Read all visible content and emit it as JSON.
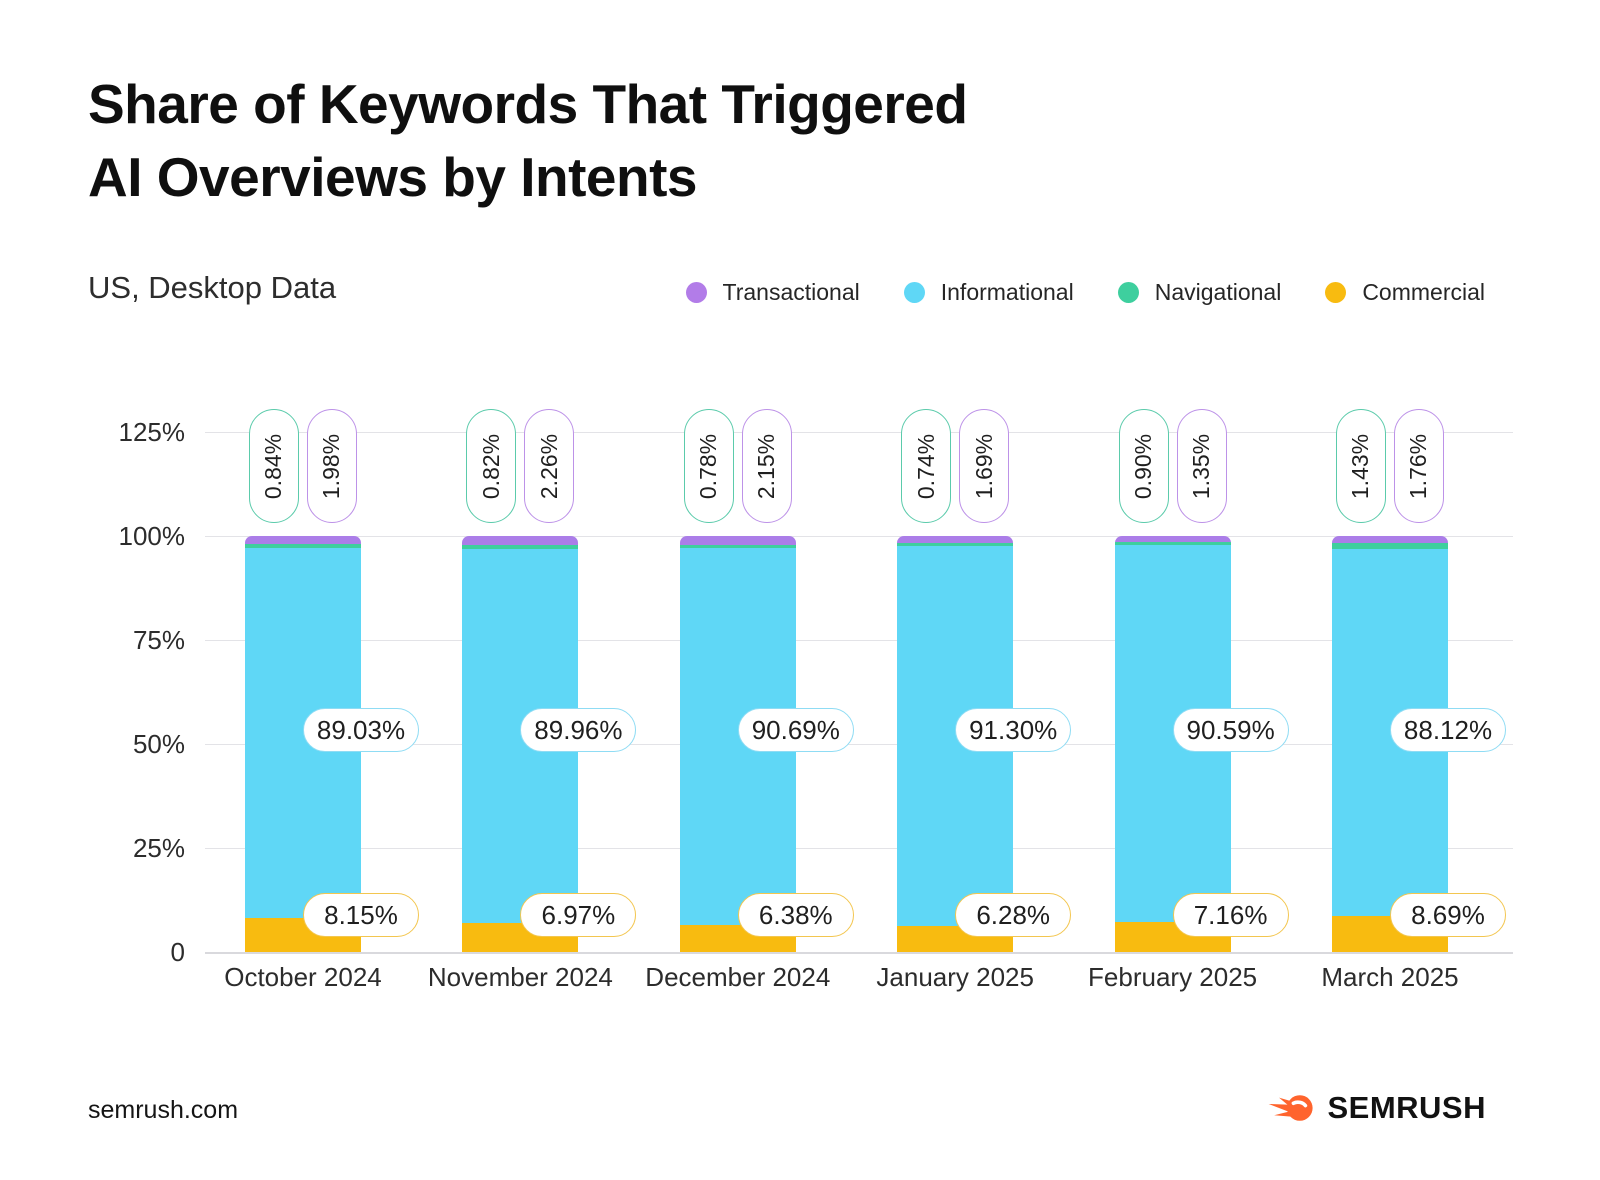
{
  "page": {
    "title_line1": "Share of Keywords That Triggered",
    "title_line2": "AI Overviews by Intents",
    "subtitle": "US, Desktop Data",
    "footer_url": "semrush.com",
    "brand_name": "SEMRUSH",
    "brand_color": "#ff642d"
  },
  "legend": [
    {
      "label": "Transactional",
      "color": "#b27ce8"
    },
    {
      "label": "Informational",
      "color": "#5fd7f6"
    },
    {
      "label": "Navigational",
      "color": "#3ecf9e"
    },
    {
      "label": "Commercial",
      "color": "#f8bb10"
    }
  ],
  "chart_data": {
    "type": "bar",
    "stacked": true,
    "title": "Share of Keywords That Triggered AI Overviews by Intents",
    "subtitle": "US, Desktop Data",
    "grid": true,
    "legend_position": "top-right",
    "categories": [
      "October 2024",
      "November 2024",
      "December 2024",
      "January 2025",
      "February 2025",
      "March 2025"
    ],
    "series": [
      {
        "name": "Transactional",
        "color": "#ab7de8",
        "values": [
          1.98,
          2.26,
          2.15,
          1.69,
          1.35,
          1.76
        ]
      },
      {
        "name": "Navigational",
        "color": "#3ecf9e",
        "values": [
          0.84,
          0.82,
          0.78,
          0.74,
          0.9,
          1.43
        ]
      },
      {
        "name": "Informational",
        "color": "#5fd7f6",
        "values": [
          89.03,
          89.96,
          90.69,
          91.3,
          90.59,
          88.12
        ]
      },
      {
        "name": "Commercial",
        "color": "#f8bb10",
        "values": [
          8.15,
          6.97,
          6.38,
          6.28,
          7.16,
          8.69
        ]
      }
    ],
    "stack_order_top_to_bottom": [
      "Transactional",
      "Navigational",
      "Informational",
      "Commercial"
    ],
    "pill_labels": {
      "navigational": [
        "0.84%",
        "0.82%",
        "0.78%",
        "0.74%",
        "0.90%",
        "1.43%"
      ],
      "transactional": [
        "1.98%",
        "2.26%",
        "2.15%",
        "1.69%",
        "1.35%",
        "1.76%"
      ],
      "informational": [
        "89.03%",
        "89.96%",
        "90.69%",
        "91.30%",
        "90.59%",
        "88.12%"
      ],
      "commercial": [
        "8.15%",
        "6.97%",
        "6.38%",
        "6.28%",
        "7.16%",
        "8.69%"
      ]
    },
    "pill_border_colors": {
      "navigational": "#5bcbab",
      "transactional": "#bd92e8",
      "informational": "#8fdcf4",
      "commercial": "#f3c64f"
    },
    "y_axis": {
      "max": 125,
      "ticks": [
        {
          "value": 0,
          "label": "0"
        },
        {
          "value": 25,
          "label": "25%"
        },
        {
          "value": 50,
          "label": "50%"
        },
        {
          "value": 75,
          "label": "75%"
        },
        {
          "value": 100,
          "label": "100%"
        },
        {
          "value": 125,
          "label": "125%"
        }
      ]
    }
  }
}
